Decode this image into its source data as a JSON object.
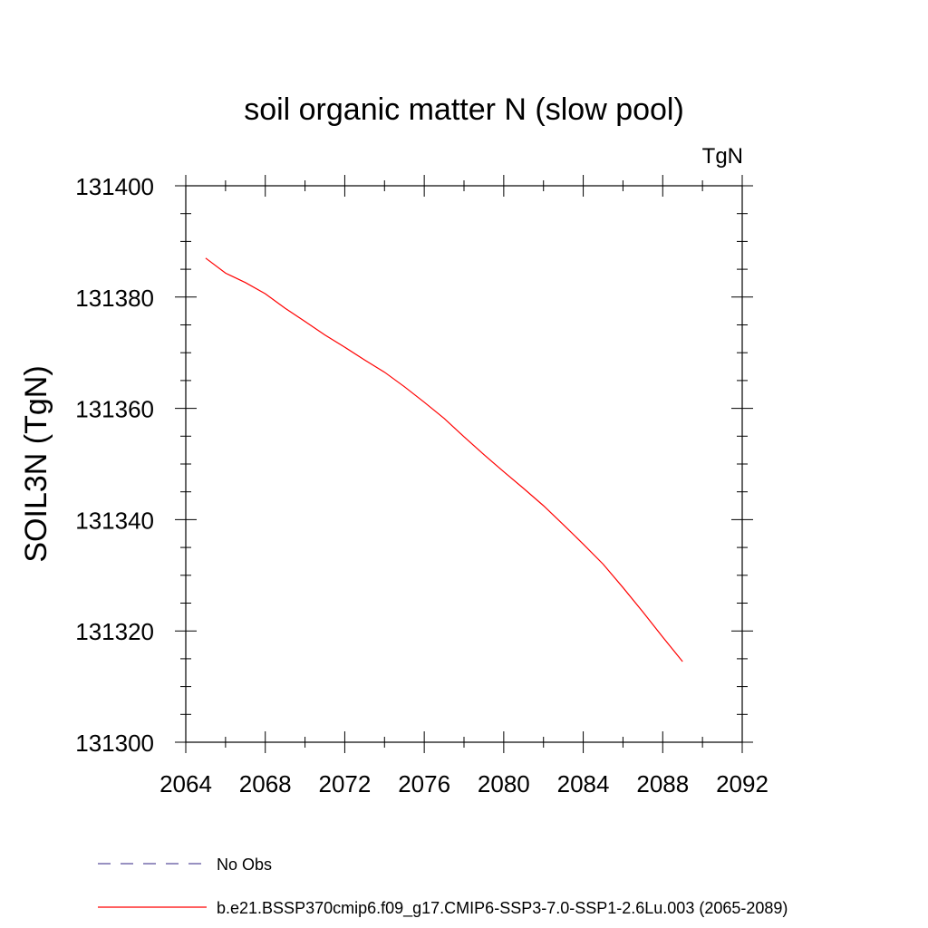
{
  "chart_data": {
    "type": "line",
    "title": "soil organic matter N (slow pool)",
    "units": "TgN",
    "xlabel": "",
    "ylabel": "SOIL3N  (TgN)",
    "xlim": [
      2064,
      2092
    ],
    "ylim": [
      131300,
      131400
    ],
    "xticks": [
      2064,
      2068,
      2072,
      2076,
      2080,
      2084,
      2088,
      2092
    ],
    "yticks": [
      131300,
      131320,
      131340,
      131360,
      131380,
      131400
    ],
    "x_tick_labels": [
      "2064",
      "2068",
      "2072",
      "2076",
      "2080",
      "2084",
      "2088",
      "2092"
    ],
    "y_tick_labels": [
      "131300",
      "131320",
      "131340",
      "131360",
      "131380",
      "131400"
    ],
    "grid": false,
    "legend_placement": "bottom",
    "series": [
      {
        "name": "b.e21.BSSP370cmip6.f09_g17.CMIP6-SSP3-7.0-SSP1-2.6Lu.003 (2065-2089)",
        "color": "#ff0000",
        "dash": "solid",
        "x": [
          2065,
          2066,
          2067,
          2068,
          2069,
          2070,
          2071,
          2072,
          2073,
          2074,
          2075,
          2076,
          2077,
          2078,
          2079,
          2080,
          2081,
          2082,
          2083,
          2084,
          2085,
          2086,
          2087,
          2088,
          2089
        ],
        "y": [
          131387.0,
          131384.3,
          131382.6,
          131380.6,
          131378.0,
          131375.6,
          131373.2,
          131371.0,
          131368.7,
          131366.5,
          131363.9,
          131361.1,
          131358.2,
          131354.9,
          131351.7,
          131348.6,
          131345.6,
          131342.5,
          131339.1,
          131335.6,
          131332.0,
          131327.8,
          131323.4,
          131318.9,
          131314.5
        ]
      }
    ],
    "legend": [
      {
        "label": "No Obs",
        "color": "#5b4f9c",
        "dash": "dashed"
      },
      {
        "label": "b.e21.BSSP370cmip6.f09_g17.CMIP6-SSP3-7.0-SSP1-2.6Lu.003 (2065-2089)",
        "color": "#ff0000",
        "dash": "solid"
      }
    ]
  }
}
